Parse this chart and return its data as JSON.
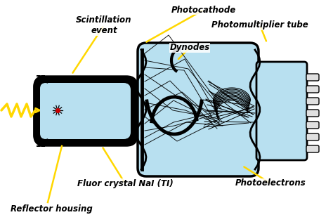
{
  "bg_color": "#ffffff",
  "light_blue": "#b8e0f0",
  "pmt_blue": "#c5e8f5",
  "base_blue": "#b8e0f0",
  "black": "#000000",
  "yellow": "#FFD700",
  "gray_pin": "#d0d0d0",
  "labels": {
    "photocathode": "Photocathode",
    "pmt": "Photomultiplier tube",
    "dynodes": "Dynodes",
    "scint": "Scintillation\nevent",
    "fluor": "Fluor crystal NaI (TI)",
    "reflector": "Reflector housing",
    "photoelectrons": "Photoelectrons"
  },
  "fig_w": 4.74,
  "fig_h": 3.16,
  "dpi": 100
}
